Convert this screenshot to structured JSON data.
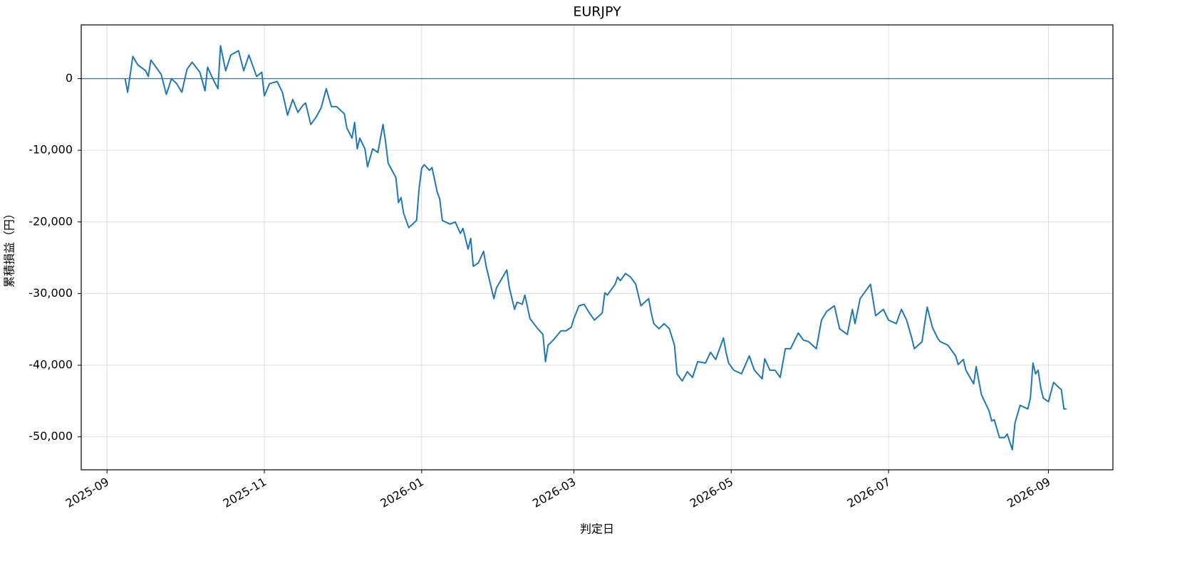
{
  "chart_data": {
    "type": "line",
    "title": "EURJPY",
    "xlabel": "判定日",
    "ylabel": "累積損益（円）",
    "xlim": [
      "2025-08-22",
      "2026-09-26"
    ],
    "xticks": [
      {
        "value": "2025-09-01",
        "label": "2025-09"
      },
      {
        "value": "2025-11-01",
        "label": "2025-11"
      },
      {
        "value": "2026-01-01",
        "label": "2026-01"
      },
      {
        "value": "2026-03-01",
        "label": "2026-03"
      },
      {
        "value": "2026-05-01",
        "label": "2026-05"
      },
      {
        "value": "2026-07-01",
        "label": "2026-07"
      },
      {
        "value": "2026-09-01",
        "label": "2026-09"
      }
    ],
    "ylim": [
      -54600,
      7500
    ],
    "yticks": [
      0,
      {
        "value": -10000,
        "label": "-10,000"
      },
      {
        "value": -20000,
        "label": "-20,000"
      },
      {
        "value": -30000,
        "label": "-30,000"
      },
      {
        "value": -40000,
        "label": "-40,000"
      },
      {
        "value": -50000,
        "label": "-50,000"
      }
    ],
    "grid": true,
    "hline": 0,
    "hline_color": "#4a6a85",
    "x": [
      "2025-09-08",
      "2025-09-09",
      "2025-09-10",
      "2025-09-11",
      "2025-09-13",
      "2025-09-16",
      "2025-09-17",
      "2025-09-18",
      "2025-09-22",
      "2025-09-24",
      "2025-09-26",
      "2025-09-28",
      "2025-09-30",
      "2025-10-02",
      "2025-10-04",
      "2025-10-07",
      "2025-10-09",
      "2025-10-10",
      "2025-10-12",
      "2025-10-14",
      "2025-10-15",
      "2025-10-17",
      "2025-10-19",
      "2025-10-22",
      "2025-10-24",
      "2025-10-26",
      "2025-10-29",
      "2025-10-31",
      "2025-11-01",
      "2025-11-03",
      "2025-11-06",
      "2025-11-08",
      "2025-11-10",
      "2025-11-12",
      "2025-11-14",
      "2025-11-16",
      "2025-11-17",
      "2025-11-19",
      "2025-11-21",
      "2025-11-23",
      "2025-11-25",
      "2025-11-27",
      "2025-11-29",
      "2025-12-02",
      "2025-12-03",
      "2025-12-05",
      "2025-12-06",
      "2025-12-07",
      "2025-12-08",
      "2025-12-10",
      "2025-12-11",
      "2025-12-13",
      "2025-12-15",
      "2025-12-17",
      "2025-12-18",
      "2025-12-19",
      "2025-12-22",
      "2025-12-23",
      "2025-12-24",
      "2025-12-25",
      "2025-12-27",
      "2025-12-30",
      "2025-12-31",
      "2026-01-01",
      "2026-01-02",
      "2026-01-04",
      "2026-01-05",
      "2026-01-07",
      "2026-01-08",
      "2026-01-09",
      "2026-01-12",
      "2026-01-14",
      "2026-01-16",
      "2026-01-17",
      "2026-01-19",
      "2026-01-20",
      "2026-01-21",
      "2026-01-23",
      "2026-01-25",
      "2026-01-26",
      "2026-01-27",
      "2026-01-29",
      "2026-01-30",
      "2026-02-03",
      "2026-02-04",
      "2026-02-06",
      "2026-02-07",
      "2026-02-09",
      "2026-02-10",
      "2026-02-12",
      "2026-02-15",
      "2026-02-17",
      "2026-02-18",
      "2026-02-19",
      "2026-02-21",
      "2026-02-24",
      "2026-02-26",
      "2026-02-28",
      "2026-03-01",
      "2026-03-03",
      "2026-03-05",
      "2026-03-07",
      "2026-03-09",
      "2026-03-12",
      "2026-03-13",
      "2026-03-14",
      "2026-03-17",
      "2026-03-18",
      "2026-03-19",
      "2026-03-21",
      "2026-03-23",
      "2026-03-25",
      "2026-03-27",
      "2026-03-30",
      "2026-03-31",
      "2026-04-01",
      "2026-04-03",
      "2026-04-05",
      "2026-04-07",
      "2026-04-09",
      "2026-04-10",
      "2026-04-12",
      "2026-04-14",
      "2026-04-16",
      "2026-04-18",
      "2026-04-21",
      "2026-04-23",
      "2026-04-25",
      "2026-04-28",
      "2026-04-29",
      "2026-04-30",
      "2026-05-02",
      "2026-05-05",
      "2026-05-08",
      "2026-05-10",
      "2026-05-13",
      "2026-05-14",
      "2026-05-16",
      "2026-05-18",
      "2026-05-20",
      "2026-05-22",
      "2026-05-24",
      "2026-05-27",
      "2026-05-29",
      "2026-05-31",
      "2026-06-03",
      "2026-06-05",
      "2026-06-07",
      "2026-06-10",
      "2026-06-12",
      "2026-06-15",
      "2026-06-17",
      "2026-06-18",
      "2026-06-20",
      "2026-06-22",
      "2026-06-24",
      "2026-06-26",
      "2026-06-29",
      "2026-07-01",
      "2026-07-04",
      "2026-07-06",
      "2026-07-08",
      "2026-07-10",
      "2026-07-11",
      "2026-07-14",
      "2026-07-15",
      "2026-07-16",
      "2026-07-18",
      "2026-07-20",
      "2026-07-21",
      "2026-07-24",
      "2026-07-27",
      "2026-07-28",
      "2026-07-30",
      "2026-07-31",
      "2026-08-03",
      "2026-08-04",
      "2026-08-06",
      "2026-08-09",
      "2026-08-10",
      "2026-08-11",
      "2026-08-13",
      "2026-08-15",
      "2026-08-16",
      "2026-08-18",
      "2026-08-19",
      "2026-08-21",
      "2026-08-24",
      "2026-08-25",
      "2026-08-26",
      "2026-08-27",
      "2026-08-28",
      "2026-08-29",
      "2026-08-30",
      "2026-09-01",
      "2026-09-03",
      "2026-09-05",
      "2026-09-06",
      "2026-09-07",
      "2026-09-08"
    ],
    "series": [
      {
        "name": "EURJPY",
        "color": "#1f77b4",
        "values": [
          0,
          -1900,
          600,
          3100,
          1900,
          1100,
          300,
          2600,
          600,
          -2200,
          0,
          -700,
          -1900,
          1300,
          2300,
          900,
          -1700,
          1600,
          0,
          -1400,
          4600,
          1100,
          3300,
          3900,
          1100,
          3300,
          300,
          900,
          -2400,
          -700,
          -400,
          -1900,
          -5100,
          -2900,
          -4700,
          -3700,
          -3400,
          -6400,
          -5400,
          -4100,
          -1400,
          -3900,
          -3900,
          -4900,
          -6900,
          -8300,
          -6100,
          -9800,
          -8300,
          -9800,
          -12300,
          -9800,
          -10300,
          -6400,
          -8800,
          -11800,
          -13800,
          -17300,
          -16600,
          -18800,
          -20800,
          -19800,
          -15300,
          -12500,
          -12000,
          -12800,
          -12400,
          -15800,
          -16800,
          -19800,
          -20300,
          -20000,
          -21600,
          -20900,
          -23800,
          -22300,
          -26200,
          -25700,
          -24100,
          -26200,
          -27700,
          -30700,
          -29200,
          -26700,
          -29200,
          -32200,
          -31200,
          -31500,
          -30200,
          -33500,
          -34900,
          -35700,
          -39500,
          -37200,
          -36500,
          -35200,
          -35200,
          -34700,
          -33500,
          -31700,
          -31500,
          -32700,
          -33700,
          -32700,
          -29900,
          -30200,
          -28700,
          -27700,
          -28200,
          -27200,
          -27700,
          -28700,
          -31700,
          -30700,
          -32700,
          -34200,
          -34900,
          -34200,
          -34900,
          -37200,
          -41200,
          -42200,
          -40900,
          -41700,
          -39500,
          -39700,
          -38200,
          -39200,
          -36200,
          -38200,
          -39700,
          -40700,
          -41200,
          -38700,
          -40700,
          -41900,
          -39100,
          -40700,
          -40700,
          -41700,
          -37700,
          -37700,
          -35500,
          -36500,
          -36700,
          -37700,
          -33700,
          -32500,
          -31700,
          -34900,
          -35700,
          -32200,
          -34200,
          -30700,
          -29700,
          -28700,
          -33100,
          -32200,
          -33700,
          -34200,
          -32200,
          -33700,
          -36200,
          -37700,
          -36700,
          -34200,
          -31900,
          -34700,
          -36200,
          -36700,
          -37200,
          -38700,
          -39900,
          -39200,
          -40700,
          -42600,
          -40200,
          -44100,
          -46400,
          -47800,
          -47600,
          -50100,
          -50100,
          -49600,
          -51800,
          -48100,
          -45600,
          -46100,
          -44600,
          -39700,
          -41200,
          -40700,
          -43100,
          -44600,
          -45100,
          -42400,
          -43100,
          -43400,
          -46100,
          -46100
        ]
      }
    ]
  }
}
